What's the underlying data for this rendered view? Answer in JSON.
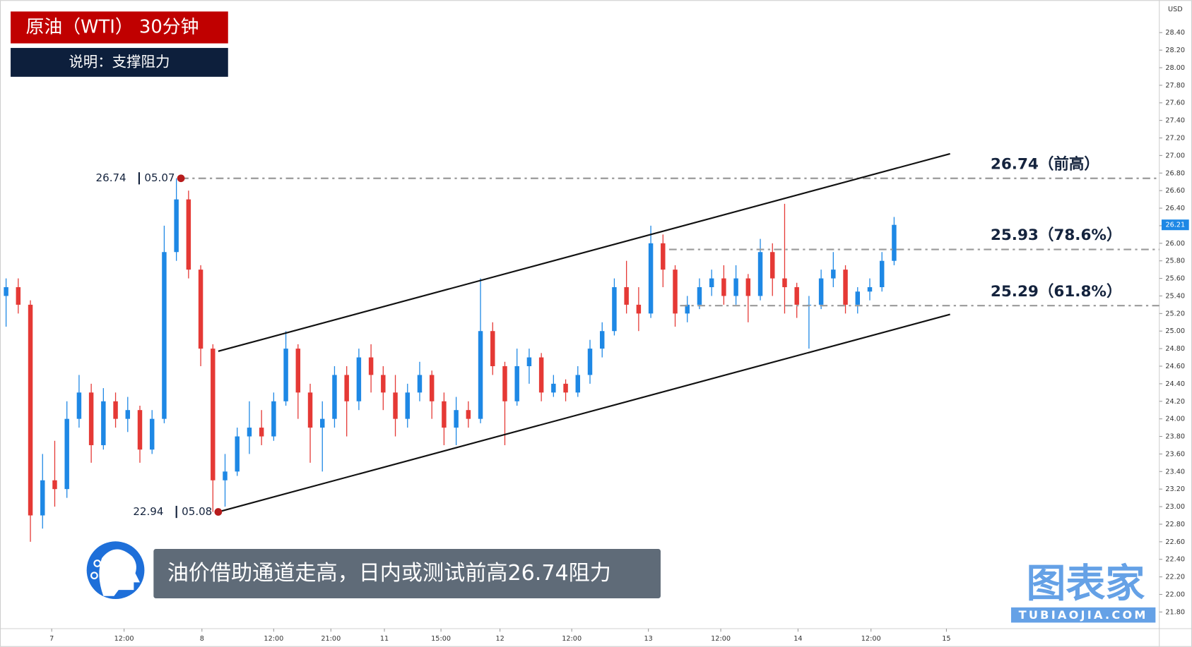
{
  "chart_data": {
    "type": "candlestick",
    "title": "原油（WTI） 30分钟",
    "subtitle": "说明：支撑阻力",
    "annotation": "油价借助通道走高，日内或测试前高26.74阻力",
    "y_unit": "USD",
    "up_color": "#1e88e5",
    "down_color": "#e53935",
    "grid": false,
    "xlim": [
      -0.5,
      94.8
    ],
    "xticks": [
      {
        "value": 3.75,
        "label": "7"
      },
      {
        "value": 9.7,
        "label": "12:00"
      },
      {
        "value": 16.1,
        "label": "8"
      },
      {
        "value": 22,
        "label": "12:00"
      },
      {
        "value": 26.7,
        "label": "21:00"
      },
      {
        "value": 31.1,
        "label": "11"
      },
      {
        "value": 35.75,
        "label": "15:00"
      },
      {
        "value": 40.6,
        "label": "12"
      },
      {
        "value": 46.5,
        "label": "12:00"
      },
      {
        "value": 52.8,
        "label": "13"
      },
      {
        "value": 58.75,
        "label": "12:00"
      },
      {
        "value": 65.1,
        "label": "14"
      },
      {
        "value": 71.1,
        "label": "12:00"
      },
      {
        "value": 77.3,
        "label": "15"
      }
    ],
    "ylim": [
      21.61,
      28.77
    ],
    "yticks": [
      {
        "value": 21.8,
        "label": "21.80"
      },
      {
        "value": 22,
        "label": "22.00"
      },
      {
        "value": 22.2,
        "label": "22.20"
      },
      {
        "value": 22.4,
        "label": "22.40"
      },
      {
        "value": 22.6,
        "label": "22.60"
      },
      {
        "value": 22.8,
        "label": "22.80"
      },
      {
        "value": 23,
        "label": "23.00"
      },
      {
        "value": 23.2,
        "label": "23.20"
      },
      {
        "value": 23.4,
        "label": "23.40"
      },
      {
        "value": 23.6,
        "label": "23.60"
      },
      {
        "value": 23.8,
        "label": "23.80"
      },
      {
        "value": 24,
        "label": "24.00"
      },
      {
        "value": 24.2,
        "label": "24.20"
      },
      {
        "value": 24.4,
        "label": "24.40"
      },
      {
        "value": 24.6,
        "label": "24.60"
      },
      {
        "value": 24.8,
        "label": "24.80"
      },
      {
        "value": 25,
        "label": "25.00"
      },
      {
        "value": 25.2,
        "label": "25.20"
      },
      {
        "value": 25.4,
        "label": "25.40"
      },
      {
        "value": 25.6,
        "label": "25.60"
      },
      {
        "value": 25.8,
        "label": "25.80"
      },
      {
        "value": 26,
        "label": "26.00"
      },
      {
        "value": 26.2,
        "label": "26.20"
      },
      {
        "value": 26.4,
        "label": "26.40"
      },
      {
        "value": 26.6,
        "label": "26.60"
      },
      {
        "value": 26.8,
        "label": "26.80"
      },
      {
        "value": 27,
        "label": "27.00"
      },
      {
        "value": 27.2,
        "label": "27.20"
      },
      {
        "value": 27.4,
        "label": "27.40"
      },
      {
        "value": 27.6,
        "label": "27.60"
      },
      {
        "value": 27.8,
        "label": "27.80"
      },
      {
        "value": 28,
        "label": "28.00"
      },
      {
        "value": 28.2,
        "label": "28.20"
      },
      {
        "value": 28.4,
        "label": "28.40"
      }
    ],
    "open": [
      25.4,
      25.5,
      25.3,
      22.9,
      23.3,
      23.2,
      24.0,
      24.3,
      23.7,
      24.2,
      24.0,
      24.1,
      23.65,
      24.0,
      25.9,
      26.5,
      25.7,
      24.8,
      23.3,
      23.4,
      23.8,
      23.9,
      23.8,
      24.2,
      24.8,
      24.3,
      23.9,
      24.0,
      24.5,
      24.2,
      24.7,
      24.5,
      24.3,
      24.0,
      24.3,
      24.5,
      24.2,
      23.9,
      24.1,
      24.0,
      25.0,
      24.6,
      24.2,
      24.6,
      24.7,
      24.3,
      24.4,
      24.3,
      24.5,
      24.8,
      25.0,
      25.5,
      25.3,
      25.2,
      26.0,
      25.7,
      25.2,
      25.3,
      25.5,
      25.6,
      25.4,
      25.6,
      25.4,
      25.9,
      25.6,
      25.5,
      25.3,
      25.3,
      25.6,
      25.7,
      25.3,
      25.45,
      25.5,
      25.8
    ],
    "high": [
      25.6,
      25.6,
      25.35,
      23.6,
      23.75,
      24.2,
      24.5,
      24.4,
      24.35,
      24.3,
      24.25,
      24.15,
      24.1,
      26.2,
      26.74,
      26.6,
      25.75,
      24.85,
      23.6,
      23.9,
      24.2,
      24.1,
      24.3,
      25.0,
      24.85,
      24.4,
      24.2,
      24.6,
      24.6,
      24.8,
      24.85,
      24.6,
      24.5,
      24.4,
      24.65,
      24.55,
      24.3,
      24.25,
      24.2,
      25.6,
      25.1,
      24.65,
      24.8,
      24.8,
      24.75,
      24.5,
      24.45,
      24.6,
      24.9,
      25.1,
      25.6,
      25.8,
      25.5,
      26.2,
      26.1,
      25.75,
      25.4,
      25.6,
      25.7,
      25.75,
      25.75,
      25.65,
      26.05,
      26.0,
      26.45,
      25.55,
      25.4,
      25.7,
      25.9,
      25.75,
      25.5,
      25.6,
      25.9,
      26.3
    ],
    "low": [
      25.05,
      25.2,
      22.6,
      22.75,
      23.0,
      23.1,
      23.9,
      23.5,
      23.65,
      23.9,
      23.85,
      23.5,
      23.6,
      23.95,
      25.8,
      25.6,
      24.6,
      22.94,
      23.0,
      23.35,
      23.6,
      23.7,
      23.75,
      24.15,
      24.0,
      23.5,
      23.4,
      23.9,
      23.8,
      24.1,
      24.3,
      24.1,
      23.8,
      23.9,
      24.2,
      24.0,
      23.7,
      23.7,
      23.9,
      23.95,
      24.5,
      23.7,
      24.15,
      24.4,
      24.2,
      24.25,
      24.2,
      24.25,
      24.4,
      24.7,
      24.95,
      25.2,
      25.0,
      25.15,
      25.5,
      25.05,
      25.1,
      25.25,
      25.4,
      25.3,
      25.3,
      25.1,
      25.35,
      25.4,
      25.2,
      25.15,
      24.8,
      25.25,
      25.5,
      25.2,
      25.2,
      25.35,
      25.45,
      25.75
    ],
    "close": [
      25.5,
      25.3,
      22.9,
      23.3,
      23.2,
      24.0,
      24.3,
      23.7,
      24.2,
      24.0,
      24.1,
      23.65,
      24.0,
      25.9,
      26.5,
      25.7,
      24.8,
      23.3,
      23.4,
      23.8,
      23.9,
      23.8,
      24.2,
      24.8,
      24.3,
      23.9,
      24.0,
      24.5,
      24.2,
      24.7,
      24.5,
      24.3,
      24.0,
      24.3,
      24.5,
      24.2,
      23.9,
      24.1,
      24.0,
      25.0,
      24.6,
      24.2,
      24.6,
      24.7,
      24.3,
      24.4,
      24.3,
      24.5,
      24.8,
      25.0,
      25.5,
      25.3,
      25.2,
      26.0,
      25.7,
      25.2,
      25.3,
      25.5,
      25.6,
      25.4,
      25.6,
      25.4,
      25.9,
      25.6,
      25.5,
      25.3,
      25.3,
      25.6,
      25.7,
      25.3,
      25.45,
      25.5,
      25.8,
      26.21
    ],
    "channel": [
      {
        "x": [
          17.44,
          77.6
        ],
        "y": [
          24.77,
          27.02
        ]
      },
      {
        "x": [
          17.44,
          77.6
        ],
        "y": [
          22.94,
          25.19
        ]
      }
    ],
    "levels": [
      {
        "from": 14.375,
        "value": 26.74,
        "label": "26.74（前高）"
      },
      {
        "from": 54.5,
        "value": 25.93,
        "label": "25.93（78.6%）"
      },
      {
        "from": 55.4,
        "value": 25.29,
        "label": "25.29（61.8%）"
      }
    ],
    "markers": [
      {
        "x": 14.375,
        "value": 26.74,
        "date": "05.07",
        "side": "top"
      },
      {
        "x": 17.44,
        "value": 22.94,
        "date": "05.08",
        "side": "bottom"
      }
    ]
  },
  "watermark": {
    "brand": "图表家",
    "site": "TUBIAOJIA.COM"
  }
}
